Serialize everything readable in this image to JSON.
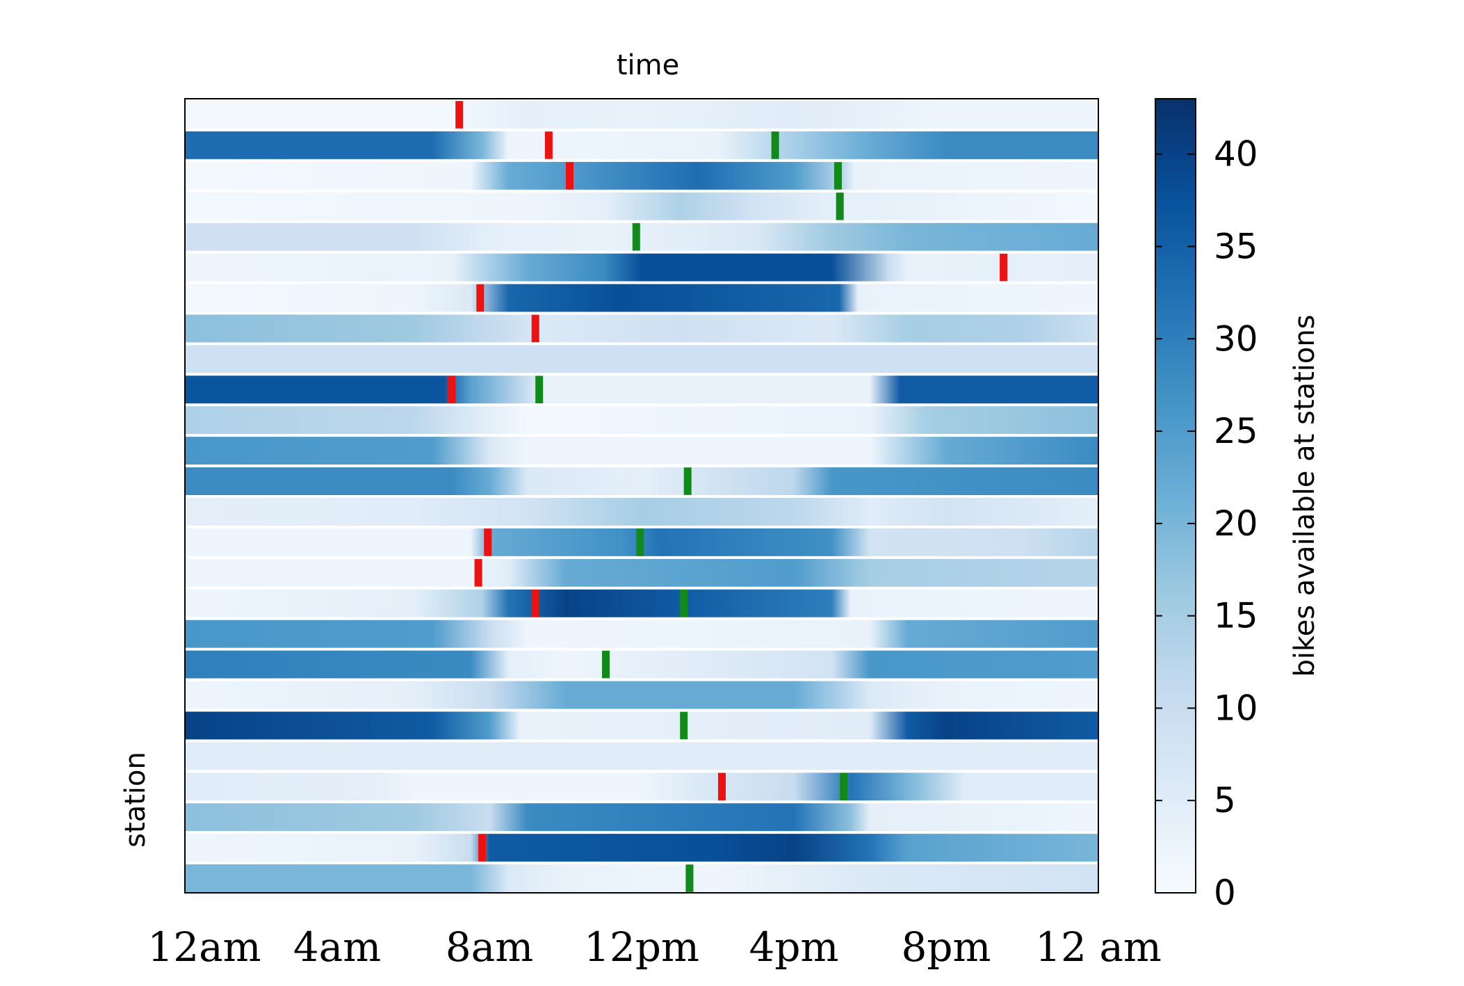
{
  "chart_data": {
    "type": "heatmap",
    "title": "time",
    "xlabel": "",
    "ylabel": "station",
    "x_tick_labels": [
      "12am",
      "4am",
      "8am",
      "12pm",
      "4pm",
      "8pm",
      "12 am"
    ],
    "x_range_hours": [
      0,
      24
    ],
    "colorbar": {
      "label": "bikes available at stations",
      "ticks": [
        0,
        5,
        10,
        15,
        20,
        25,
        30,
        35,
        40
      ],
      "range": [
        0,
        43
      ],
      "colormap": [
        "#f7fbff",
        "#deebf7",
        "#c6dbef",
        "#9ecae1",
        "#6baed6",
        "#4292c6",
        "#2171b5",
        "#08519c",
        "#08306b"
      ]
    },
    "marker_colors": {
      "red": "#ee1111",
      "green": "#118a1a"
    },
    "rows": [
      {
        "profile": [
          [
            0,
            1
          ],
          [
            7,
            1
          ],
          [
            9,
            4
          ],
          [
            12,
            3
          ],
          [
            16,
            5
          ],
          [
            20,
            2
          ],
          [
            24,
            2
          ]
        ],
        "red": [
          7.2
        ],
        "green": []
      },
      {
        "profile": [
          [
            0,
            33
          ],
          [
            6.5,
            33
          ],
          [
            7.8,
            20
          ],
          [
            8.5,
            2
          ],
          [
            14,
            3
          ],
          [
            18,
            22
          ],
          [
            20,
            28
          ],
          [
            24,
            28
          ]
        ],
        "red": [
          9.55
        ],
        "green": [
          15.5
        ]
      },
      {
        "profile": [
          [
            0,
            1
          ],
          [
            7.5,
            2
          ],
          [
            8.5,
            22
          ],
          [
            9.5,
            24
          ],
          [
            13.5,
            33
          ],
          [
            16,
            25
          ],
          [
            17.3,
            12
          ],
          [
            17.6,
            3
          ],
          [
            24,
            2
          ]
        ],
        "red": [
          10.1
        ],
        "green": [
          17.15
        ]
      },
      {
        "profile": [
          [
            0,
            1
          ],
          [
            9,
            2
          ],
          [
            11,
            4
          ],
          [
            13,
            14
          ],
          [
            15,
            8
          ],
          [
            17,
            4
          ],
          [
            24,
            1
          ]
        ],
        "red": [],
        "green": [
          17.2
        ]
      },
      {
        "profile": [
          [
            0,
            9
          ],
          [
            6,
            9
          ],
          [
            8,
            4
          ],
          [
            11,
            3
          ],
          [
            15,
            6
          ],
          [
            17,
            16
          ],
          [
            19,
            20
          ],
          [
            24,
            22
          ]
        ],
        "red": [],
        "green": [
          11.85
        ]
      },
      {
        "profile": [
          [
            0,
            2
          ],
          [
            7,
            3
          ],
          [
            9,
            22
          ],
          [
            11,
            28
          ],
          [
            12,
            38
          ],
          [
            17,
            38
          ],
          [
            18.5,
            10
          ],
          [
            19,
            3
          ],
          [
            24,
            4
          ]
        ],
        "red": [
          21.5
        ],
        "green": []
      },
      {
        "profile": [
          [
            0,
            1
          ],
          [
            6,
            2
          ],
          [
            7.5,
            6
          ],
          [
            8.5,
            34
          ],
          [
            11.5,
            38
          ],
          [
            17.2,
            34
          ],
          [
            17.7,
            3
          ],
          [
            24,
            2
          ]
        ],
        "red": [
          7.75
        ],
        "green": []
      },
      {
        "profile": [
          [
            0,
            18
          ],
          [
            6,
            16
          ],
          [
            8,
            11
          ],
          [
            9.5,
            6
          ],
          [
            13,
            9
          ],
          [
            17,
            6
          ],
          [
            19,
            15
          ],
          [
            22,
            14
          ],
          [
            24,
            9
          ]
        ],
        "red": [
          9.2
        ],
        "green": []
      },
      {
        "profile": [
          [
            0,
            9
          ],
          [
            24,
            9
          ]
        ],
        "red": [],
        "green": []
      },
      {
        "profile": [
          [
            0,
            37
          ],
          [
            6.8,
            37
          ],
          [
            7.5,
            24
          ],
          [
            8.8,
            12
          ],
          [
            9.5,
            3
          ],
          [
            18,
            3
          ],
          [
            18.8,
            36
          ],
          [
            24,
            36
          ]
        ],
        "red": [
          7.0
        ],
        "green": [
          9.3
        ]
      },
      {
        "profile": [
          [
            0,
            14
          ],
          [
            6,
            12
          ],
          [
            8,
            4
          ],
          [
            9,
            1
          ],
          [
            18,
            3
          ],
          [
            19.5,
            15
          ],
          [
            24,
            18
          ]
        ],
        "red": [],
        "green": []
      },
      {
        "profile": [
          [
            0,
            26
          ],
          [
            6.5,
            25
          ],
          [
            8,
            6
          ],
          [
            9,
            2
          ],
          [
            18,
            2
          ],
          [
            20,
            22
          ],
          [
            24,
            28
          ]
        ],
        "red": [],
        "green": []
      },
      {
        "profile": [
          [
            0,
            28
          ],
          [
            7,
            28
          ],
          [
            8,
            22
          ],
          [
            9,
            6
          ],
          [
            12,
            4
          ],
          [
            16,
            12
          ],
          [
            17,
            26
          ],
          [
            24,
            28
          ]
        ],
        "red": [],
        "green": [
          13.2
        ]
      },
      {
        "profile": [
          [
            0,
            4
          ],
          [
            6,
            5
          ],
          [
            9,
            8
          ],
          [
            12,
            15
          ],
          [
            16,
            12
          ],
          [
            18,
            5
          ],
          [
            20,
            8
          ],
          [
            24,
            4
          ]
        ],
        "red": [],
        "green": []
      },
      {
        "profile": [
          [
            0,
            2
          ],
          [
            7.5,
            2
          ],
          [
            8,
            22
          ],
          [
            11.5,
            27
          ],
          [
            12.5,
            32
          ],
          [
            17,
            27
          ],
          [
            18,
            8
          ],
          [
            22,
            9
          ],
          [
            24,
            13
          ]
        ],
        "red": [
          7.95
        ],
        "green": [
          11.95
        ]
      },
      {
        "profile": [
          [
            0,
            2
          ],
          [
            7.5,
            2
          ],
          [
            8.5,
            5
          ],
          [
            10,
            22
          ],
          [
            16,
            25
          ],
          [
            18,
            15
          ],
          [
            24,
            13
          ]
        ],
        "red": [
          7.7
        ],
        "green": []
      },
      {
        "profile": [
          [
            0,
            2
          ],
          [
            6,
            4
          ],
          [
            7.8,
            14
          ],
          [
            8.5,
            32
          ],
          [
            10,
            40
          ],
          [
            13,
            36
          ],
          [
            17,
            30
          ],
          [
            17.5,
            3
          ],
          [
            24,
            2
          ]
        ],
        "red": [
          9.2
        ],
        "green": [
          13.1
        ]
      },
      {
        "profile": [
          [
            0,
            26
          ],
          [
            6.5,
            25
          ],
          [
            8,
            10
          ],
          [
            9,
            2
          ],
          [
            18,
            3
          ],
          [
            19,
            22
          ],
          [
            24,
            25
          ]
        ],
        "red": [],
        "green": []
      },
      {
        "profile": [
          [
            0,
            30
          ],
          [
            7.5,
            28
          ],
          [
            8.5,
            4
          ],
          [
            10,
            2
          ],
          [
            17,
            8
          ],
          [
            18,
            26
          ],
          [
            24,
            25
          ]
        ],
        "red": [],
        "green": [
          11.05
        ]
      },
      {
        "profile": [
          [
            0,
            2
          ],
          [
            6,
            4
          ],
          [
            8,
            10
          ],
          [
            10,
            22
          ],
          [
            16,
            22
          ],
          [
            18,
            6
          ],
          [
            20,
            3
          ],
          [
            24,
            2
          ]
        ],
        "red": [],
        "green": []
      },
      {
        "profile": [
          [
            0,
            40
          ],
          [
            6.5,
            36
          ],
          [
            8,
            25
          ],
          [
            8.8,
            3
          ],
          [
            18,
            5
          ],
          [
            19,
            36
          ],
          [
            20,
            40
          ],
          [
            24,
            36
          ]
        ],
        "red": [],
        "green": [
          13.1
        ]
      },
      {
        "profile": [
          [
            0,
            5
          ],
          [
            24,
            5
          ]
        ],
        "red": [],
        "green": []
      },
      {
        "profile": [
          [
            0,
            5
          ],
          [
            5,
            4
          ],
          [
            6,
            2
          ],
          [
            12,
            2
          ],
          [
            13.5,
            6
          ],
          [
            16,
            10
          ],
          [
            17.5,
            32
          ],
          [
            19,
            20
          ],
          [
            20.5,
            5
          ],
          [
            24,
            5
          ]
        ],
        "red": [
          14.1
        ],
        "green": [
          17.3
        ]
      },
      {
        "profile": [
          [
            0,
            18
          ],
          [
            6,
            16
          ],
          [
            8,
            10
          ],
          [
            9,
            28
          ],
          [
            16,
            32
          ],
          [
            17.5,
            18
          ],
          [
            18,
            4
          ],
          [
            24,
            2
          ]
        ],
        "red": [],
        "green": []
      },
      {
        "profile": [
          [
            0,
            2
          ],
          [
            6,
            3
          ],
          [
            7.5,
            10
          ],
          [
            8,
            36
          ],
          [
            14,
            38
          ],
          [
            16,
            40
          ],
          [
            18,
            32
          ],
          [
            19,
            24
          ],
          [
            24,
            20
          ]
        ],
        "red": [
          7.8
        ],
        "green": []
      },
      {
        "profile": [
          [
            0,
            20
          ],
          [
            7.5,
            20
          ],
          [
            8.5,
            6
          ],
          [
            10,
            3
          ],
          [
            14,
            2
          ],
          [
            18,
            6
          ],
          [
            24,
            8
          ]
        ],
        "red": [],
        "green": [
          13.25
        ]
      }
    ]
  }
}
